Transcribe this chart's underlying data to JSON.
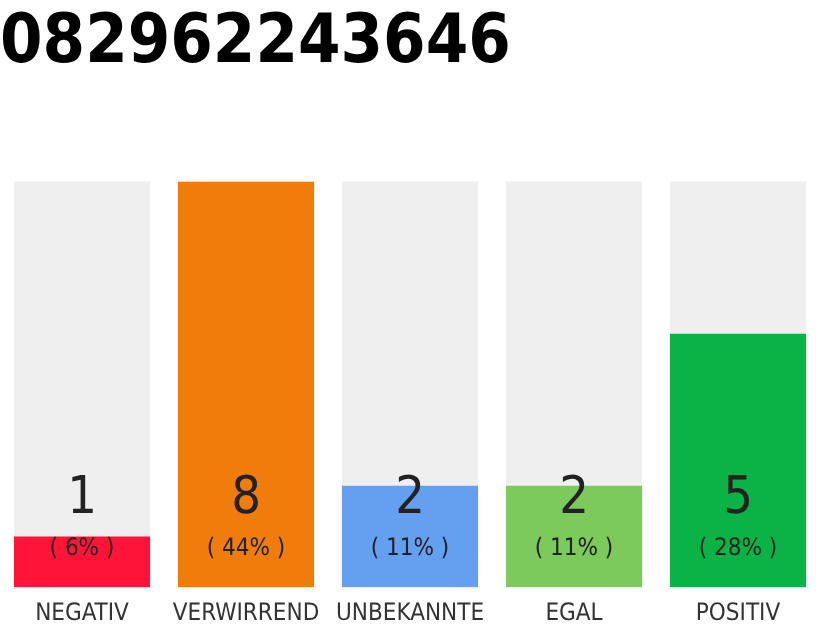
{
  "chart_data": {
    "type": "bar",
    "title": "082962243646",
    "categories": [
      "NEGATIV",
      "VERWIRREND",
      "UNBEKANNTE",
      "EGAL",
      "POSITIV"
    ],
    "values": [
      1,
      8,
      2,
      2,
      5
    ],
    "colors": [
      "#ff1439",
      "#f07c0c",
      "#659ff0",
      "#7cc95c",
      "#0bb245"
    ],
    "ylim": [
      0,
      8
    ],
    "tick_labels": "x",
    "grid": false,
    "legend": false,
    "data_labels": true,
    "annotations": [
      "( 6% )",
      "( 44% )",
      "( 11% )",
      "( 11% )",
      "( 28% )"
    ]
  }
}
